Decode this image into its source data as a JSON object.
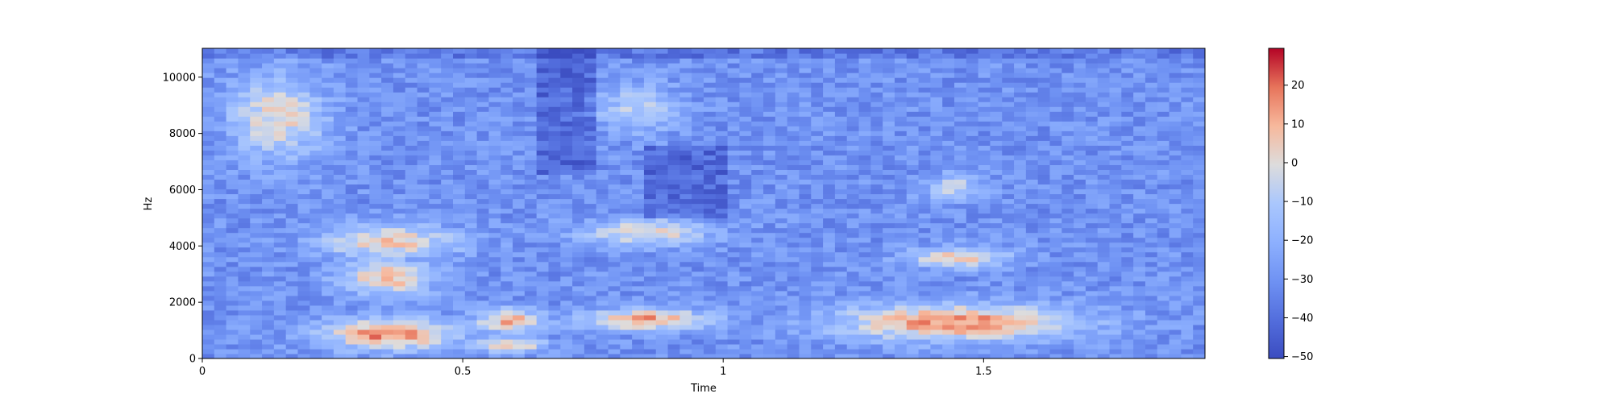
{
  "chart_data": {
    "type": "heatmap",
    "title": "",
    "xlabel": "Time",
    "ylabel": "Hz",
    "x_ticks": [
      0,
      0.5,
      1,
      1.5
    ],
    "x_tick_labels": [
      "0",
      "0.5",
      "1",
      "1.5"
    ],
    "y_ticks": [
      0,
      2000,
      4000,
      6000,
      8000,
      10000
    ],
    "y_tick_labels": [
      "0",
      "2000",
      "4000",
      "6000",
      "8000",
      "10000"
    ],
    "xlim": [
      0,
      1.925
    ],
    "ylim": [
      0,
      11025
    ],
    "colormap": "coolwarm",
    "colorbar": {
      "ticks": [
        20,
        10,
        0,
        -10,
        -20,
        -30,
        -40,
        -50
      ],
      "tick_labels": [
        "20",
        "10",
        "0",
        "−10",
        "−20",
        "−30",
        "−40",
        "−50"
      ],
      "range": [
        -50.5,
        29.5
      ]
    },
    "grid": false,
    "spectral_regions": [
      {
        "t": [
          0.05,
          0.24
        ],
        "f": [
          7000,
          10200
        ],
        "level_db": 2
      },
      {
        "t": [
          0.22,
          0.5
        ],
        "f": [
          3500,
          4800
        ],
        "level_db": 5
      },
      {
        "t": [
          0.26,
          0.45
        ],
        "f": [
          2200,
          3600
        ],
        "level_db": 8
      },
      {
        "t": [
          0.22,
          0.5
        ],
        "f": [
          300,
          1500
        ],
        "level_db": 18
      },
      {
        "t": [
          0.52,
          0.66
        ],
        "f": [
          900,
          1800
        ],
        "level_db": 12
      },
      {
        "t": [
          0.52,
          0.66
        ],
        "f": [
          200,
          800
        ],
        "level_db": 10
      },
      {
        "t": [
          0.72,
          0.98
        ],
        "f": [
          1000,
          1800
        ],
        "level_db": 14
      },
      {
        "t": [
          0.72,
          0.98
        ],
        "f": [
          4000,
          5000
        ],
        "level_db": 3
      },
      {
        "t": [
          0.75,
          0.92
        ],
        "f": [
          8000,
          9800
        ],
        "level_db": -8
      },
      {
        "t": [
          1.2,
          1.7
        ],
        "f": [
          600,
          2000
        ],
        "level_db": 16
      },
      {
        "t": [
          1.35,
          1.55
        ],
        "f": [
          3200,
          4000
        ],
        "level_db": 6
      },
      {
        "t": [
          1.38,
          1.5
        ],
        "f": [
          5600,
          6600
        ],
        "level_db": -5
      }
    ]
  }
}
